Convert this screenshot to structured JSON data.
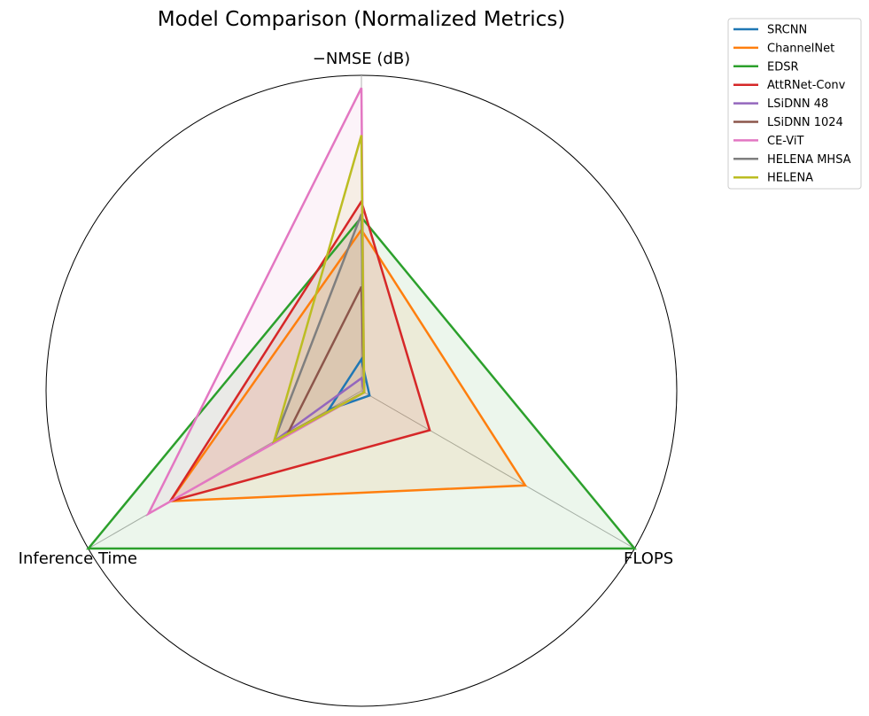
{
  "chart_data": {
    "type": "radar",
    "title": "Model Comparison (Normalized Metrics)",
    "axes": [
      "−NMSE (dB)",
      "FLOPS",
      "Inference Time"
    ],
    "range": [
      0,
      1
    ],
    "grid": false,
    "legend_position": "top-right",
    "series": [
      {
        "name": "SRCNN",
        "color": "#1f77b4",
        "values": [
          0.1,
          0.03,
          0.12
        ],
        "filled": false
      },
      {
        "name": "ChannelNet",
        "color": "#ff7f0e",
        "values": [
          0.51,
          0.6,
          0.7
        ],
        "filled": true
      },
      {
        "name": "EDSR",
        "color": "#2ca02c",
        "values": [
          0.55,
          1.0,
          1.0
        ],
        "filled": true
      },
      {
        "name": "AttRNet-Conv",
        "color": "#d62728",
        "values": [
          0.6,
          0.25,
          0.7
        ],
        "filled": true
      },
      {
        "name": "LSiDNN 48",
        "color": "#9467bd",
        "values": [
          0.04,
          0.01,
          0.32
        ],
        "filled": false
      },
      {
        "name": "LSiDNN 1024",
        "color": "#8c564b",
        "values": [
          0.33,
          0.01,
          0.27
        ],
        "filled": false
      },
      {
        "name": "CE-ViT",
        "color": "#e377c2",
        "values": [
          0.96,
          0.01,
          0.78
        ],
        "filled": true
      },
      {
        "name": "HELENA MHSA",
        "color": "#7f7f7f",
        "values": [
          0.56,
          0.01,
          0.32
        ],
        "filled": true
      },
      {
        "name": "HELENA",
        "color": "#bcbd22",
        "values": [
          0.81,
          0.01,
          0.32
        ],
        "filled": true
      }
    ]
  }
}
